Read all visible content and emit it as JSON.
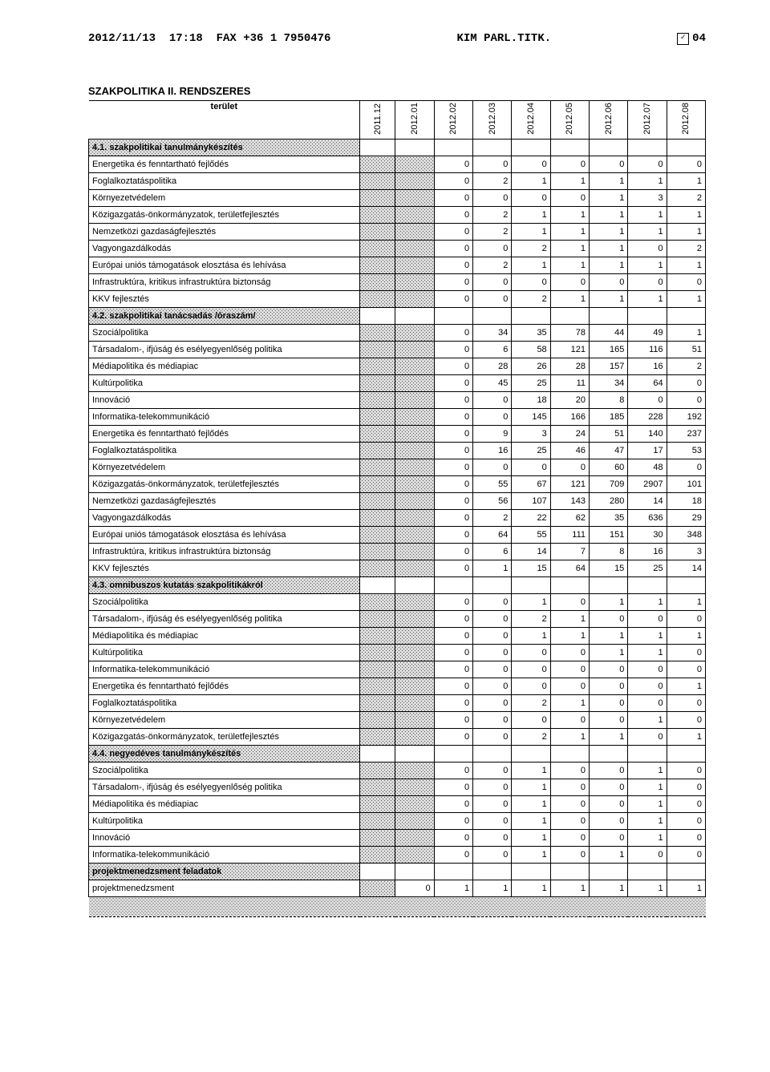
{
  "fax": {
    "left": "2012/11/13  17:18  FAX +36 1 7950476",
    "mid": "KIM PARL.TITK.",
    "right_num": "04"
  },
  "title": "SZAKPOLITIKA II. RENDSZERES",
  "area_label": "terület",
  "columns": [
    "2011.12",
    "2012.01",
    "2012.02",
    "2012.03",
    "2012.04",
    "2012.05",
    "2012.06",
    "2012.07",
    "2012.08"
  ],
  "sections": [
    {
      "label": "4.1. szakpolitikai tanulmánykészítés",
      "rows": [
        {
          "label": "Energetika és fenntartható fejlődés",
          "vals": [
            "",
            "",
            "0",
            "0",
            "0",
            "0",
            "0",
            "0",
            "0"
          ]
        },
        {
          "label": "Foglalkoztatáspolitika",
          "vals": [
            "",
            "",
            "0",
            "2",
            "1",
            "1",
            "1",
            "1",
            "1"
          ]
        },
        {
          "label": "Környezetvédelem",
          "vals": [
            "",
            "",
            "0",
            "0",
            "0",
            "0",
            "1",
            "3",
            "2"
          ]
        },
        {
          "label": "Közigazgatás-önkormányzatok, területfejlesztés",
          "vals": [
            "",
            "",
            "0",
            "2",
            "1",
            "1",
            "1",
            "1",
            "1"
          ]
        },
        {
          "label": "Nemzetközi gazdaságfejlesztés",
          "vals": [
            "",
            "",
            "0",
            "2",
            "1",
            "1",
            "1",
            "1",
            "1"
          ]
        },
        {
          "label": "Vagyongazdálkodás",
          "vals": [
            "",
            "",
            "0",
            "0",
            "2",
            "1",
            "1",
            "0",
            "2"
          ]
        },
        {
          "label": "Európai uniós támogatások elosztása és lehívása",
          "vals": [
            "",
            "",
            "0",
            "2",
            "1",
            "1",
            "1",
            "1",
            "1"
          ]
        },
        {
          "label": "Infrastruktúra, kritikus infrastruktúra biztonság",
          "vals": [
            "",
            "",
            "0",
            "0",
            "0",
            "0",
            "0",
            "0",
            "0"
          ]
        },
        {
          "label": "KKV fejlesztés",
          "vals": [
            "",
            "",
            "0",
            "0",
            "2",
            "1",
            "1",
            "1",
            "1"
          ]
        }
      ]
    },
    {
      "label": "4.2. szakpolitikai tanácsadás /óraszám/",
      "rows": [
        {
          "label": "Szociálpolitika",
          "vals": [
            "",
            "",
            "0",
            "34",
            "35",
            "78",
            "44",
            "49",
            "1"
          ]
        },
        {
          "label": "Társadalom-, ifjúság és esélyegyenlőség politika",
          "vals": [
            "",
            "",
            "0",
            "6",
            "58",
            "121",
            "165",
            "116",
            "51"
          ]
        },
        {
          "label": "Médiapolitika és médiapiac",
          "vals": [
            "",
            "",
            "0",
            "28",
            "26",
            "28",
            "157",
            "16",
            "2"
          ]
        },
        {
          "label": "Kultúrpolitika",
          "vals": [
            "",
            "",
            "0",
            "45",
            "25",
            "11",
            "34",
            "64",
            "0"
          ]
        },
        {
          "label": "Innováció",
          "vals": [
            "",
            "",
            "0",
            "0",
            "18",
            "20",
            "8",
            "0",
            "0"
          ]
        },
        {
          "label": "Informatika-telekommunikáció",
          "vals": [
            "",
            "",
            "0",
            "0",
            "145",
            "166",
            "185",
            "228",
            "192"
          ]
        },
        {
          "label": "Energetika és fenntartható fejlődés",
          "vals": [
            "",
            "",
            "0",
            "9",
            "3",
            "24",
            "51",
            "140",
            "237"
          ]
        },
        {
          "label": "Foglalkoztatáspolitika",
          "vals": [
            "",
            "",
            "0",
            "16",
            "25",
            "46",
            "47",
            "17",
            "53"
          ]
        },
        {
          "label": "Környezetvédelem",
          "vals": [
            "",
            "",
            "0",
            "0",
            "0",
            "0",
            "60",
            "48",
            "0"
          ]
        },
        {
          "label": "Közigazgatás-önkormányzatok, területfejlesztés",
          "vals": [
            "",
            "",
            "0",
            "55",
            "67",
            "121",
            "709",
            "2907",
            "101"
          ]
        },
        {
          "label": "Nemzetközi gazdaságfejlesztés",
          "vals": [
            "",
            "",
            "0",
            "56",
            "107",
            "143",
            "280",
            "14",
            "18"
          ]
        },
        {
          "label": "Vagyongazdálkodás",
          "vals": [
            "",
            "",
            "0",
            "2",
            "22",
            "62",
            "35",
            "636",
            "29"
          ]
        },
        {
          "label": "Európai uniós támogatások elosztása és lehívása",
          "vals": [
            "",
            "",
            "0",
            "64",
            "55",
            "111",
            "151",
            "30",
            "348"
          ]
        },
        {
          "label": "Infrastruktúra, kritikus infrastruktúra biztonság",
          "vals": [
            "",
            "",
            "0",
            "6",
            "14",
            "7",
            "8",
            "16",
            "3"
          ]
        },
        {
          "label": "KKV fejlesztés",
          "vals": [
            "",
            "",
            "0",
            "1",
            "15",
            "64",
            "15",
            "25",
            "14"
          ]
        }
      ]
    },
    {
      "label": "4.3. omnibuszos kutatás szakpolitikákról",
      "rows": [
        {
          "label": "Szociálpolitika",
          "vals": [
            "",
            "",
            "0",
            "0",
            "1",
            "0",
            "1",
            "1",
            "1"
          ]
        },
        {
          "label": "Társadalom-, ifjúság és esélyegyenlőség politika",
          "vals": [
            "",
            "",
            "0",
            "0",
            "2",
            "1",
            "0",
            "0",
            "0"
          ]
        },
        {
          "label": "Médiapolitika és médiapiac",
          "vals": [
            "",
            "",
            "0",
            "0",
            "1",
            "1",
            "1",
            "1",
            "1"
          ]
        },
        {
          "label": "Kultúrpolitika",
          "vals": [
            "",
            "",
            "0",
            "0",
            "0",
            "0",
            "1",
            "1",
            "0"
          ]
        },
        {
          "label": "Informatika-telekommunikáció",
          "vals": [
            "",
            "",
            "0",
            "0",
            "0",
            "0",
            "0",
            "0",
            "0"
          ]
        },
        {
          "label": "Energetika és fenntartható fejlődés",
          "vals": [
            "",
            "",
            "0",
            "0",
            "0",
            "0",
            "0",
            "0",
            "1"
          ]
        },
        {
          "label": "Foglalkoztatáspolitika",
          "vals": [
            "",
            "",
            "0",
            "0",
            "2",
            "1",
            "0",
            "0",
            "0"
          ]
        },
        {
          "label": "Környezetvédelem",
          "vals": [
            "",
            "",
            "0",
            "0",
            "0",
            "0",
            "0",
            "1",
            "0"
          ]
        },
        {
          "label": "Közigazgatás-önkormányzatok, területfejlesztés",
          "vals": [
            "",
            "",
            "0",
            "0",
            "2",
            "1",
            "1",
            "0",
            "1"
          ]
        }
      ]
    },
    {
      "label": "4.4. negyedéves tanulmánykészítés",
      "rows": [
        {
          "label": "Szociálpolitika",
          "vals": [
            "",
            "",
            "0",
            "0",
            "1",
            "0",
            "0",
            "1",
            "0"
          ]
        },
        {
          "label": "Társadalom-, ifjúság és esélyegyenlőség politika",
          "vals": [
            "",
            "",
            "0",
            "0",
            "1",
            "0",
            "0",
            "1",
            "0"
          ]
        },
        {
          "label": "Médiapolitika és médiapiac",
          "vals": [
            "",
            "",
            "0",
            "0",
            "1",
            "0",
            "0",
            "1",
            "0"
          ]
        },
        {
          "label": "Kultúrpolitika",
          "vals": [
            "",
            "",
            "0",
            "0",
            "1",
            "0",
            "0",
            "1",
            "0"
          ]
        },
        {
          "label": "Innováció",
          "vals": [
            "",
            "",
            "0",
            "0",
            "1",
            "0",
            "0",
            "1",
            "0"
          ]
        },
        {
          "label": "Informatika-telekommunikáció",
          "vals": [
            "",
            "",
            "0",
            "0",
            "1",
            "0",
            "1",
            "0",
            "0"
          ]
        }
      ]
    },
    {
      "label": "projektmenedzsment feladatok",
      "rows": [
        {
          "label": "projektmenedzsment",
          "vals": [
            "",
            "0",
            "1",
            "1",
            "1",
            "1",
            "1",
            "1",
            "1"
          ]
        }
      ]
    }
  ]
}
